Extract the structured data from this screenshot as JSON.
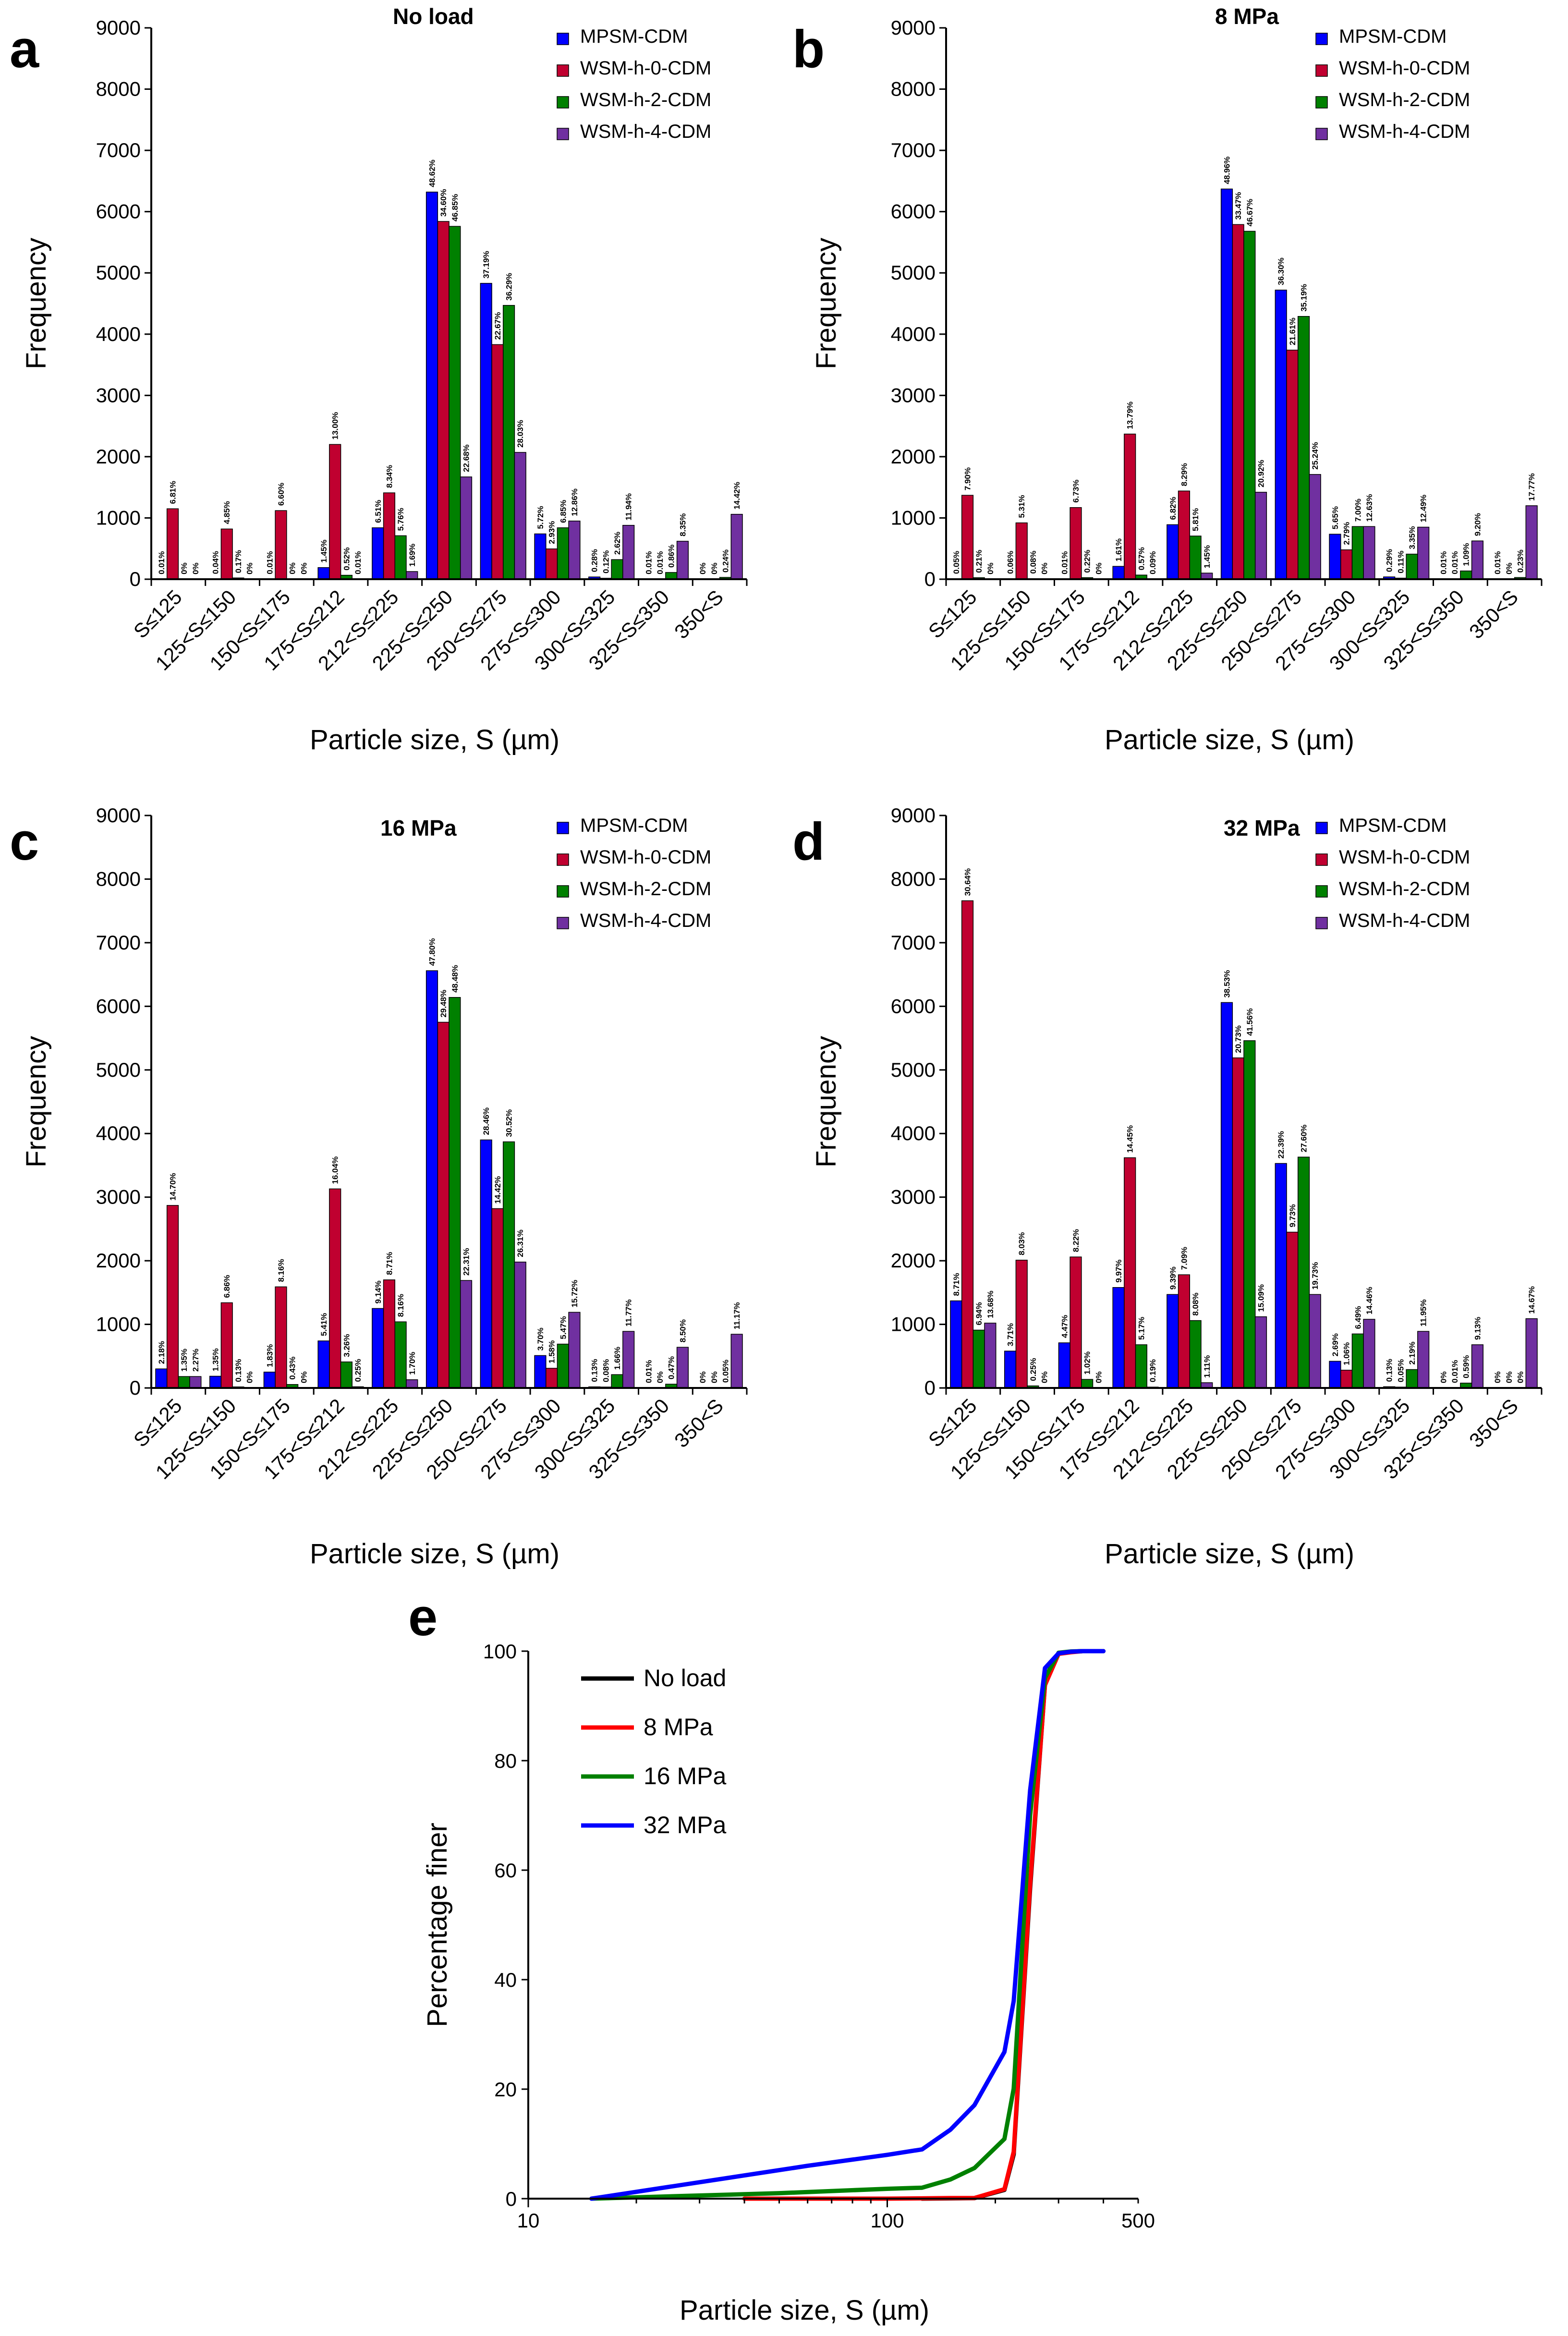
{
  "chart_data": [
    {
      "type": "bar",
      "panel": "a",
      "title": "No load",
      "xlabel": "Particle size, S (µm)",
      "ylabel": "Frequency",
      "ylim": [
        0,
        9000
      ],
      "yticks": [
        "0",
        "1000",
        "2000",
        "3000",
        "4000",
        "5000",
        "6000",
        "7000",
        "8000",
        "9000"
      ],
      "categories": [
        "S≤125",
        "125<S≤150",
        "150<S≤175",
        "175<S≤212",
        "212<S≤225",
        "225<S≤250",
        "250<S≤275",
        "275<S≤300",
        "300<S≤325",
        "325<S≤350",
        "350<S"
      ],
      "series": [
        {
          "name": "MPSM-CDM",
          "color": "#0000ff",
          "values": [
            1,
            5,
            2,
            190,
            840,
            6320,
            4830,
            740,
            37,
            1,
            0
          ],
          "labels": [
            "0.01%",
            "0.04%",
            "0.01%",
            "1.45%",
            "6.51%",
            "48.62%",
            "37.19%",
            "5.72%",
            "0.28%",
            "0.01%",
            "0%"
          ]
        },
        {
          "name": "WSM-h-0-CDM",
          "color": "#c00030",
          "values": [
            1150,
            820,
            1120,
            2200,
            1410,
            5840,
            3830,
            495,
            16,
            1,
            0
          ],
          "labels": [
            "6.81%",
            "4.85%",
            "6.60%",
            "13.00%",
            "8.34%",
            "34.60%",
            "22.67%",
            "2.93%",
            "0.12%",
            "0.01%",
            "0%"
          ]
        },
        {
          "name": "WSM-h-2-CDM",
          "color": "#008000",
          "values": [
            1,
            21,
            2,
            65,
            710,
            5760,
            4470,
            840,
            320,
            110,
            30
          ],
          "labels": [
            "0%",
            "0.17%",
            "0%",
            "0.52%",
            "5.76%",
            "46.85%",
            "36.29%",
            "6.85%",
            "2.62%",
            "0.86%",
            "0.24%"
          ]
        },
        {
          "name": "WSM-h-4-CDM",
          "color": "#7030a0",
          "values": [
            0,
            0,
            0,
            1,
            125,
            1670,
            2070,
            950,
            880,
            620,
            1060
          ],
          "labels": [
            "0%",
            "0%",
            "0%",
            "0.01%",
            "1.69%",
            "22.68%",
            "28.03%",
            "12.86%",
            "11.94%",
            "8.35%",
            "14.42%"
          ]
        }
      ]
    },
    {
      "type": "bar",
      "panel": "b",
      "title": "8 MPa",
      "xlabel": "Particle size, S (µm)",
      "ylabel": "Frequency",
      "ylim": [
        0,
        9000
      ],
      "yticks": [
        "0",
        "1000",
        "2000",
        "3000",
        "4000",
        "5000",
        "6000",
        "7000",
        "8000",
        "9000"
      ],
      "categories": [
        "S≤125",
        "125<S≤150",
        "150<S≤175",
        "175<S≤212",
        "212<S≤225",
        "225<S≤250",
        "250<S≤275",
        "275<S≤300",
        "300<S≤325",
        "325<S≤350",
        "350<S"
      ],
      "series": [
        {
          "name": "MPSM-CDM",
          "color": "#0000ff",
          "values": [
            7,
            8,
            1,
            210,
            890,
            6370,
            4720,
            735,
            38,
            1,
            1
          ],
          "labels": [
            "0.05%",
            "0.06%",
            "0.01%",
            "1.61%",
            "6.82%",
            "48.96%",
            "36.30%",
            "5.65%",
            "0.29%",
            "0.01%",
            "0.01%"
          ]
        },
        {
          "name": "WSM-h-0-CDM",
          "color": "#c00030",
          "values": [
            1370,
            920,
            1170,
            2370,
            1440,
            5790,
            3740,
            480,
            18,
            2,
            0
          ],
          "labels": [
            "7.90%",
            "5.31%",
            "6.73%",
            "13.79%",
            "8.29%",
            "33.47%",
            "21.61%",
            "2.79%",
            "0.11%",
            "0.01%",
            "0%"
          ]
        },
        {
          "name": "WSM-h-2-CDM",
          "color": "#008000",
          "values": [
            25,
            10,
            26,
            68,
            705,
            5680,
            4290,
            860,
            410,
            135,
            28
          ],
          "labels": [
            "0.21%",
            "0.08%",
            "0.22%",
            "0.57%",
            "5.81%",
            "46.67%",
            "35.19%",
            "7.00%",
            "3.35%",
            "1.09%",
            "0.23%"
          ]
        },
        {
          "name": "WSM-h-4-CDM",
          "color": "#7030a0",
          "values": [
            0,
            0,
            0,
            1,
            100,
            1420,
            1710,
            860,
            850,
            625,
            1200
          ],
          "labels": [
            "0%",
            "0%",
            "0%",
            "0.09%",
            "1.45%",
            "20.92%",
            "25.24%",
            "12.63%",
            "12.49%",
            "9.20%",
            "17.77%"
          ]
        }
      ]
    },
    {
      "type": "bar",
      "panel": "c",
      "title": "16 MPa",
      "xlabel": "Particle size, S (µm)",
      "ylabel": "Frequency",
      "ylim": [
        0,
        9000
      ],
      "yticks": [
        "0",
        "1000",
        "2000",
        "3000",
        "4000",
        "5000",
        "6000",
        "7000",
        "8000",
        "9000"
      ],
      "categories": [
        "S≤125",
        "125<S≤150",
        "150<S≤175",
        "175<S≤212",
        "212<S≤225",
        "225<S≤250",
        "250<S≤275",
        "275<S≤300",
        "300<S≤325",
        "325<S≤350",
        "350<S"
      ],
      "series": [
        {
          "name": "MPSM-CDM",
          "color": "#0000ff",
          "values": [
            300,
            185,
            250,
            740,
            1250,
            6560,
            3900,
            510,
            18,
            1,
            0
          ],
          "labels": [
            "2.18%",
            "1.35%",
            "1.83%",
            "5.41%",
            "9.14%",
            "47.80%",
            "28.46%",
            "3.70%",
            "0.13%",
            "0.01%",
            "0%"
          ]
        },
        {
          "name": "WSM-h-0-CDM",
          "color": "#c00030",
          "values": [
            2870,
            1340,
            1590,
            3130,
            1700,
            5750,
            2820,
            310,
            15,
            0,
            0
          ],
          "labels": [
            "14.70%",
            "6.86%",
            "8.16%",
            "16.04%",
            "8.71%",
            "29.48%",
            "14.42%",
            "1.58%",
            "0.08%",
            "0%",
            "0%"
          ]
        },
        {
          "name": "WSM-h-2-CDM",
          "color": "#008000",
          "values": [
            180,
            17,
            55,
            410,
            1040,
            6140,
            3870,
            690,
            210,
            60,
            7
          ],
          "labels": [
            "1.35%",
            "0.13%",
            "0.43%",
            "3.26%",
            "8.16%",
            "48.48%",
            "30.52%",
            "5.47%",
            "1.66%",
            "0.47%",
            "0.05%"
          ]
        },
        {
          "name": "WSM-h-4-CDM",
          "color": "#7030a0",
          "values": [
            180,
            0,
            0,
            19,
            130,
            1690,
            1980,
            1190,
            890,
            640,
            845
          ],
          "labels": [
            "2.27%",
            "0%",
            "0%",
            "0.25%",
            "1.70%",
            "22.31%",
            "26.31%",
            "15.72%",
            "11.77%",
            "8.50%",
            "11.17%"
          ]
        }
      ]
    },
    {
      "type": "bar",
      "panel": "d",
      "title": "32 MPa",
      "xlabel": "Particle size, S (µm)",
      "ylabel": "Frequency",
      "ylim": [
        0,
        9000
      ],
      "yticks": [
        "0",
        "1000",
        "2000",
        "3000",
        "4000",
        "5000",
        "6000",
        "7000",
        "8000",
        "9000"
      ],
      "categories": [
        "S≤125",
        "125<S≤150",
        "150<S≤175",
        "175<S≤212",
        "212<S≤225",
        "225<S≤250",
        "250<S≤275",
        "275<S≤300",
        "300<S≤325",
        "325<S≤350",
        "350<S"
      ],
      "series": [
        {
          "name": "MPSM-CDM",
          "color": "#0000ff",
          "values": [
            1370,
            580,
            710,
            1580,
            1470,
            6060,
            3530,
            420,
            20,
            0,
            0
          ],
          "labels": [
            "8.71%",
            "3.71%",
            "4.47%",
            "9.97%",
            "9.39%",
            "38.53%",
            "22.39%",
            "2.69%",
            "0.13%",
            "0%",
            "0%"
          ]
        },
        {
          "name": "WSM-h-0-CDM",
          "color": "#c00030",
          "values": [
            7660,
            2010,
            2060,
            3620,
            1780,
            5190,
            2450,
            280,
            14,
            2,
            0
          ],
          "labels": [
            "30.64%",
            "8.03%",
            "8.22%",
            "14.45%",
            "7.09%",
            "20.73%",
            "9.73%",
            "1.06%",
            "0.05%",
            "0.01%",
            "0%"
          ]
        },
        {
          "name": "WSM-h-2-CDM",
          "color": "#008000",
          "values": [
            910,
            33,
            135,
            680,
            1060,
            5460,
            3630,
            850,
            290,
            77,
            0
          ],
          "labels": [
            "6.94%",
            "0.25%",
            "1.02%",
            "5.17%",
            "8.08%",
            "41.56%",
            "27.60%",
            "6.49%",
            "2.19%",
            "0.59%",
            "0%"
          ]
        },
        {
          "name": "WSM-h-4-CDM",
          "color": "#7030a0",
          "values": [
            1020,
            0,
            0,
            14,
            83,
            1120,
            1470,
            1080,
            890,
            680,
            1090
          ],
          "labels": [
            "13.68%",
            "0%",
            "0%",
            "0.19%",
            "1.11%",
            "15.09%",
            "19.73%",
            "14.46%",
            "11.95%",
            "9.13%",
            "14.67%"
          ]
        }
      ]
    },
    {
      "type": "line",
      "panel": "e",
      "xscale": "log",
      "xlabel": "Particle size, S (µm)",
      "ylabel": "Percentage finer",
      "xlim": [
        10,
        500
      ],
      "ylim": [
        0,
        100
      ],
      "xticks": [
        "10",
        "100",
        "500"
      ],
      "yticks": [
        "0",
        "20",
        "40",
        "60",
        "80",
        "100"
      ],
      "legend_position": "top-left",
      "series": [
        {
          "name": "No load",
          "color": "#000000",
          "x": [
            125,
            150,
            175,
            212,
            225,
            250,
            275,
            300,
            325,
            350,
            400
          ],
          "y": [
            0,
            0.05,
            0.1,
            1.6,
            8.1,
            56.7,
            93.9,
            99.6,
            99.9,
            100,
            100
          ]
        },
        {
          "name": "8 MPa",
          "color": "#ff0000",
          "x": [
            40,
            100,
            125,
            150,
            175,
            212,
            225,
            250,
            275,
            300,
            325,
            350,
            400
          ],
          "y": [
            0,
            0,
            0.05,
            0.11,
            0.12,
            1.73,
            8.55,
            57.5,
            93.8,
            99.5,
            99.8,
            100,
            100
          ]
        },
        {
          "name": "16 MPa",
          "color": "#008000",
          "x": [
            15,
            50,
            100,
            125,
            150,
            175,
            212,
            225,
            250,
            275,
            300,
            325,
            350,
            400
          ],
          "y": [
            0,
            1,
            1.8,
            2,
            3.5,
            5.6,
            10.9,
            20.1,
            70.0,
            95.1,
            99.7,
            99.95,
            100,
            100
          ]
        },
        {
          "name": "32 MPa",
          "color": "#0000ff",
          "x": [
            15,
            30,
            60,
            100,
            125,
            150,
            175,
            212,
            225,
            250,
            275,
            300,
            325,
            350,
            400
          ],
          "y": [
            0,
            3,
            6,
            8,
            9,
            12.6,
            17.1,
            26.8,
            36.1,
            74.6,
            96.9,
            99.6,
            99.9,
            100,
            100
          ]
        }
      ]
    }
  ]
}
